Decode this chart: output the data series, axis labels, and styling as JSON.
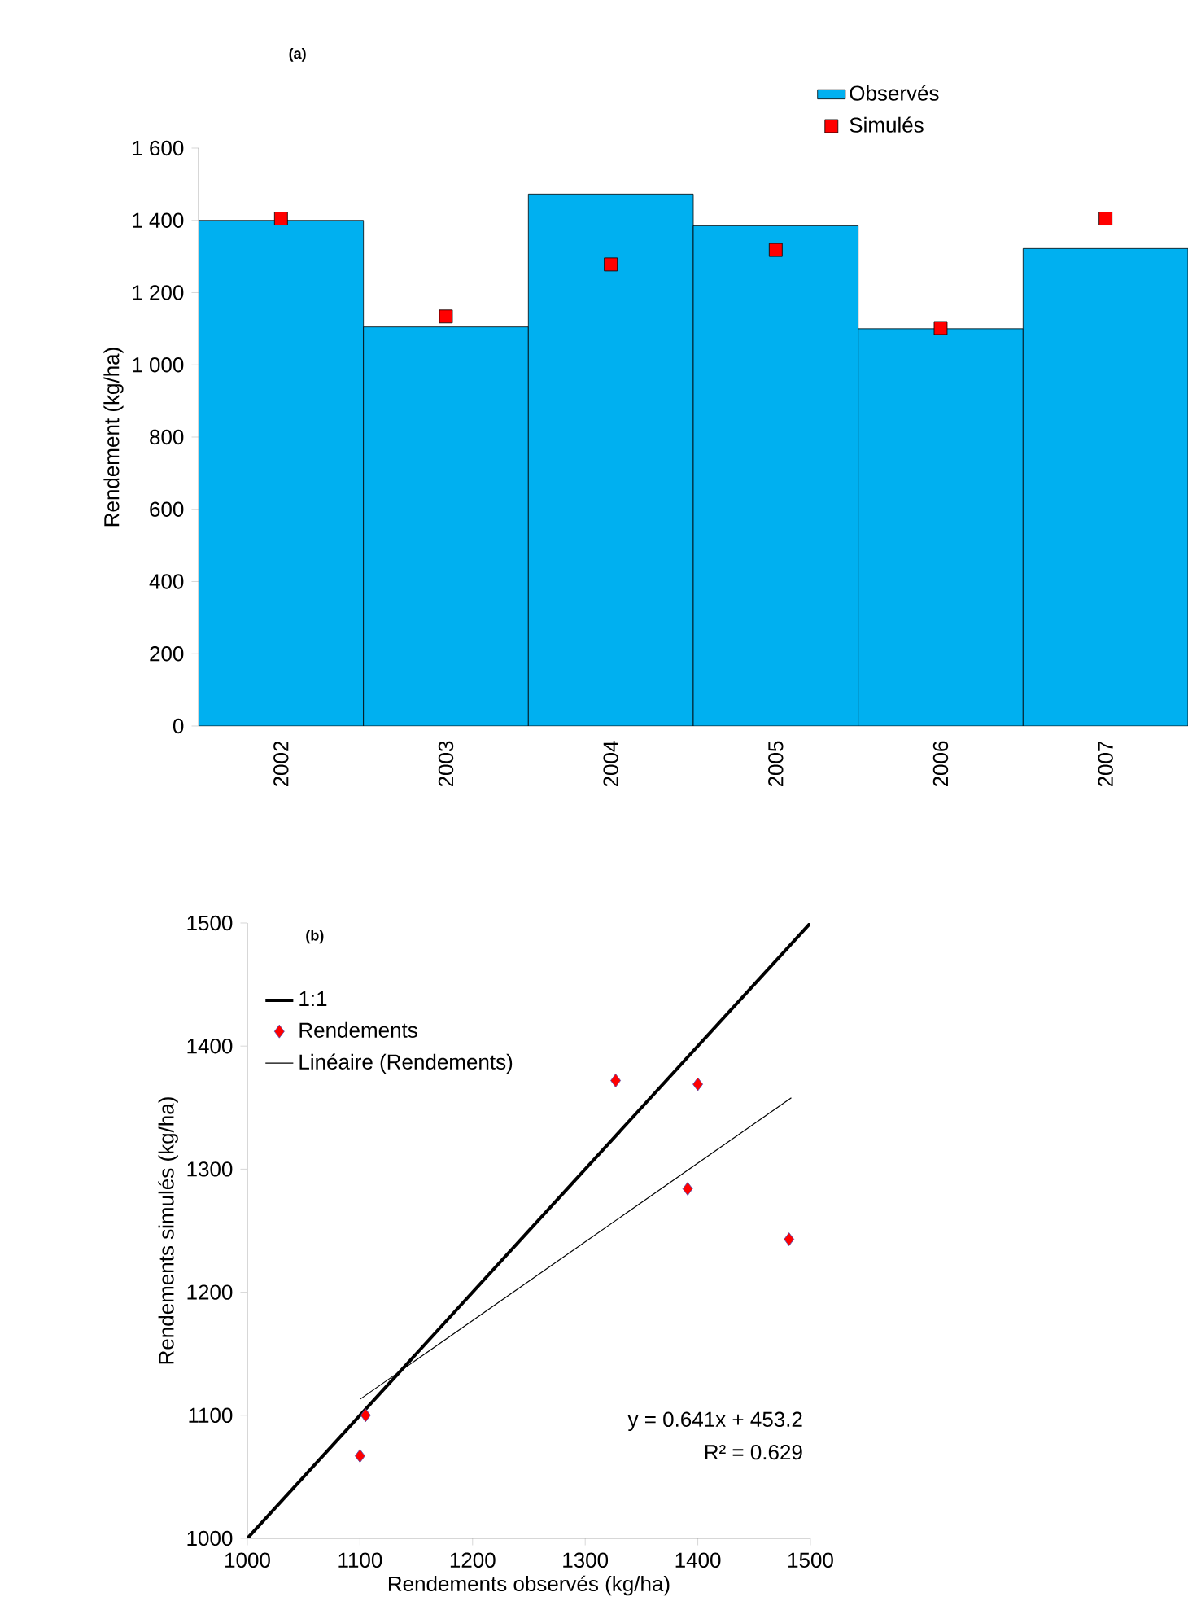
{
  "chart_data": [
    {
      "type": "bar",
      "title": "(a)",
      "ylabel": "Rendement (kg/ha)",
      "categories": [
        "2002",
        "2003",
        "2004",
        "2005",
        "2006",
        "2007"
      ],
      "series": [
        {
          "name": "Observés",
          "color": "#00b0f0",
          "values": [
            1400,
            1105,
            1473,
            1385,
            1100,
            1322
          ]
        },
        {
          "name": "Simulés",
          "type": "scatter",
          "color": "#ff0000",
          "marker": "square",
          "values": [
            1405,
            1134,
            1278,
            1318,
            1102,
            1405
          ]
        }
      ],
      "ylim": [
        0,
        1600
      ],
      "yticks": [
        0,
        200,
        400,
        600,
        800,
        {
          "value": 1000,
          "label": "1 000"
        },
        {
          "value": 1200,
          "label": "1 200"
        },
        {
          "value": 1400,
          "label": "1 400"
        },
        {
          "value": 1600,
          "label": "1 600"
        }
      ],
      "legend": "top"
    },
    {
      "type": "scatter",
      "title": "(b)",
      "xlabel": "Rendements observés (kg/ha)",
      "ylabel": "Rendements simulés (kg/ha)",
      "series": [
        {
          "name": "1:1",
          "type": "line",
          "color": "#000000",
          "x": [
            1000,
            1500
          ],
          "values": [
            1000,
            1500
          ]
        },
        {
          "name": "Rendements",
          "color": "#ff0000",
          "marker": "diamond",
          "x": [
            1105,
            1100,
            1327,
            1400,
            1391,
            1481
          ],
          "values": [
            1100,
            1067,
            1372,
            1369,
            1284,
            1243
          ]
        },
        {
          "name": "Linéaire (Rendements)",
          "type": "line",
          "color": "#000000",
          "x": [
            1100,
            1483
          ],
          "values": [
            1113,
            1358
          ]
        }
      ],
      "xlim": [
        1000,
        1500
      ],
      "xticks": [
        1000,
        1100,
        1200,
        1300,
        1400,
        1500
      ],
      "ylim": [
        1000,
        1500
      ],
      "yticks": [
        1000,
        1100,
        1200,
        1300,
        1400,
        1500
      ],
      "legend": "top left",
      "annotations": [
        "y = 0.641x + 453.2",
        "R² = 0.629"
      ]
    }
  ]
}
